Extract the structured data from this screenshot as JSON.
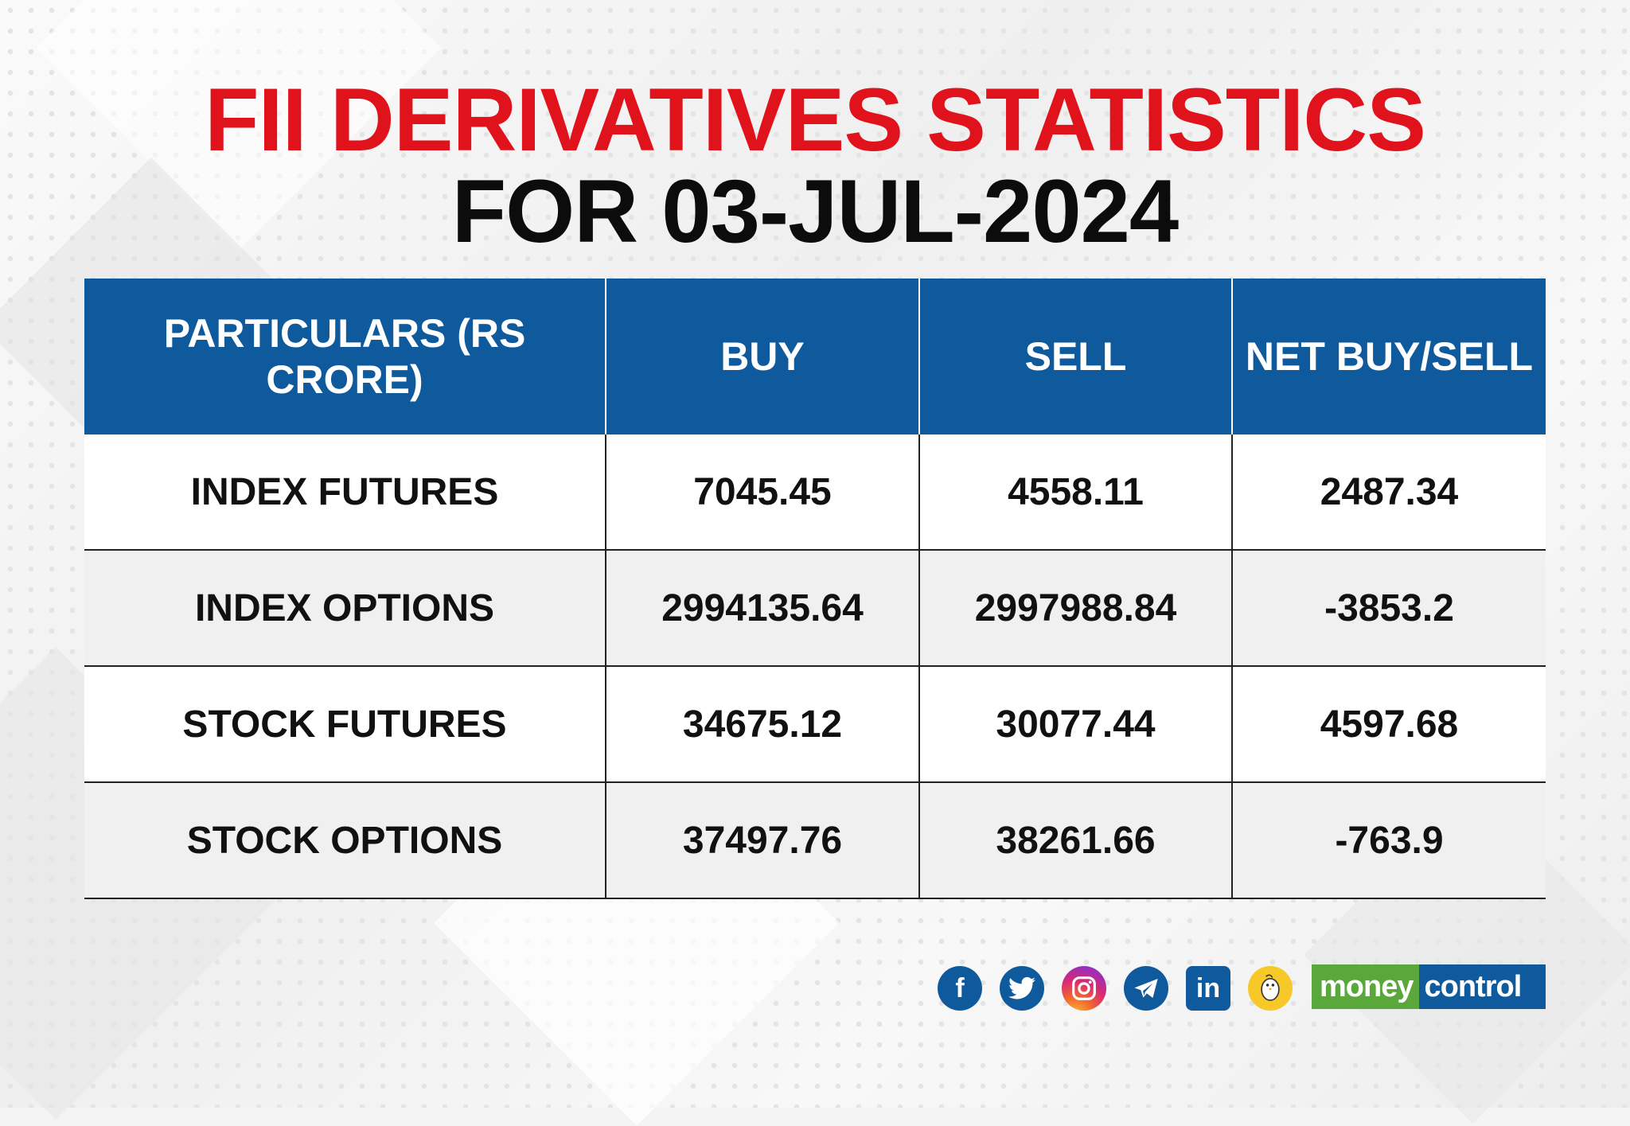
{
  "title": {
    "line1": "FII DERIVATIVES STATISTICS",
    "line2": "FOR 03-JUL-2024"
  },
  "table": {
    "headers": [
      "PARTICULARS (RS CRORE)",
      "BUY",
      "SELL",
      "NET BUY/SELL"
    ],
    "rows": [
      [
        "INDEX FUTURES",
        "7045.45",
        "4558.11",
        "2487.34"
      ],
      [
        "INDEX OPTIONS",
        "2994135.64",
        "2997988.84",
        "-3853.2"
      ],
      [
        "STOCK FUTURES",
        "34675.12",
        "30077.44",
        "4597.68"
      ],
      [
        "STOCK OPTIONS",
        "37497.76",
        "38261.66",
        "-763.9"
      ]
    ]
  },
  "social": {
    "icons": [
      "facebook-icon",
      "twitter-icon",
      "instagram-icon",
      "telegram-icon",
      "linkedin-icon",
      "koo-icon"
    ],
    "linkedin_text": "in",
    "facebook_text": "f"
  },
  "brand": {
    "part1": "money",
    "part2": "control",
    "green": "#5aa73b",
    "blue": "#0f5a9c"
  },
  "colors": {
    "title_red": "#e0121c",
    "header_blue": "#0f5a9c"
  }
}
